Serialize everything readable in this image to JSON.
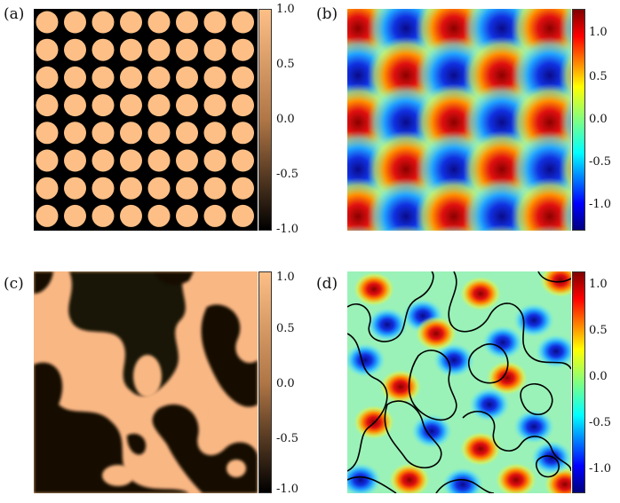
{
  "panels": [
    {
      "letter": "(a)",
      "colormap": "copper",
      "ticks": [
        "1.0",
        "0.5",
        "0.0",
        "-0.5",
        "-1.0"
      ]
    },
    {
      "letter": "(b)",
      "colormap": "jet",
      "ticks": [
        "1.0",
        "0.5",
        "0.0",
        "-0.5",
        "-1.0"
      ]
    },
    {
      "letter": "(c)",
      "colormap": "copper",
      "ticks": [
        "1.0",
        "0.5",
        "0.0",
        "-0.5",
        "-1.0"
      ]
    },
    {
      "letter": "(d)",
      "colormap": "jet",
      "ticks": [
        "1.0",
        "0.5",
        "0.0",
        "-0.5",
        "-1.0"
      ]
    }
  ],
  "colors": {
    "copper_high": "#fdbf86",
    "copper_low": "#000000",
    "jet_high": "#9b0000",
    "jet_low": "#10108f",
    "contour": "#000000"
  }
}
